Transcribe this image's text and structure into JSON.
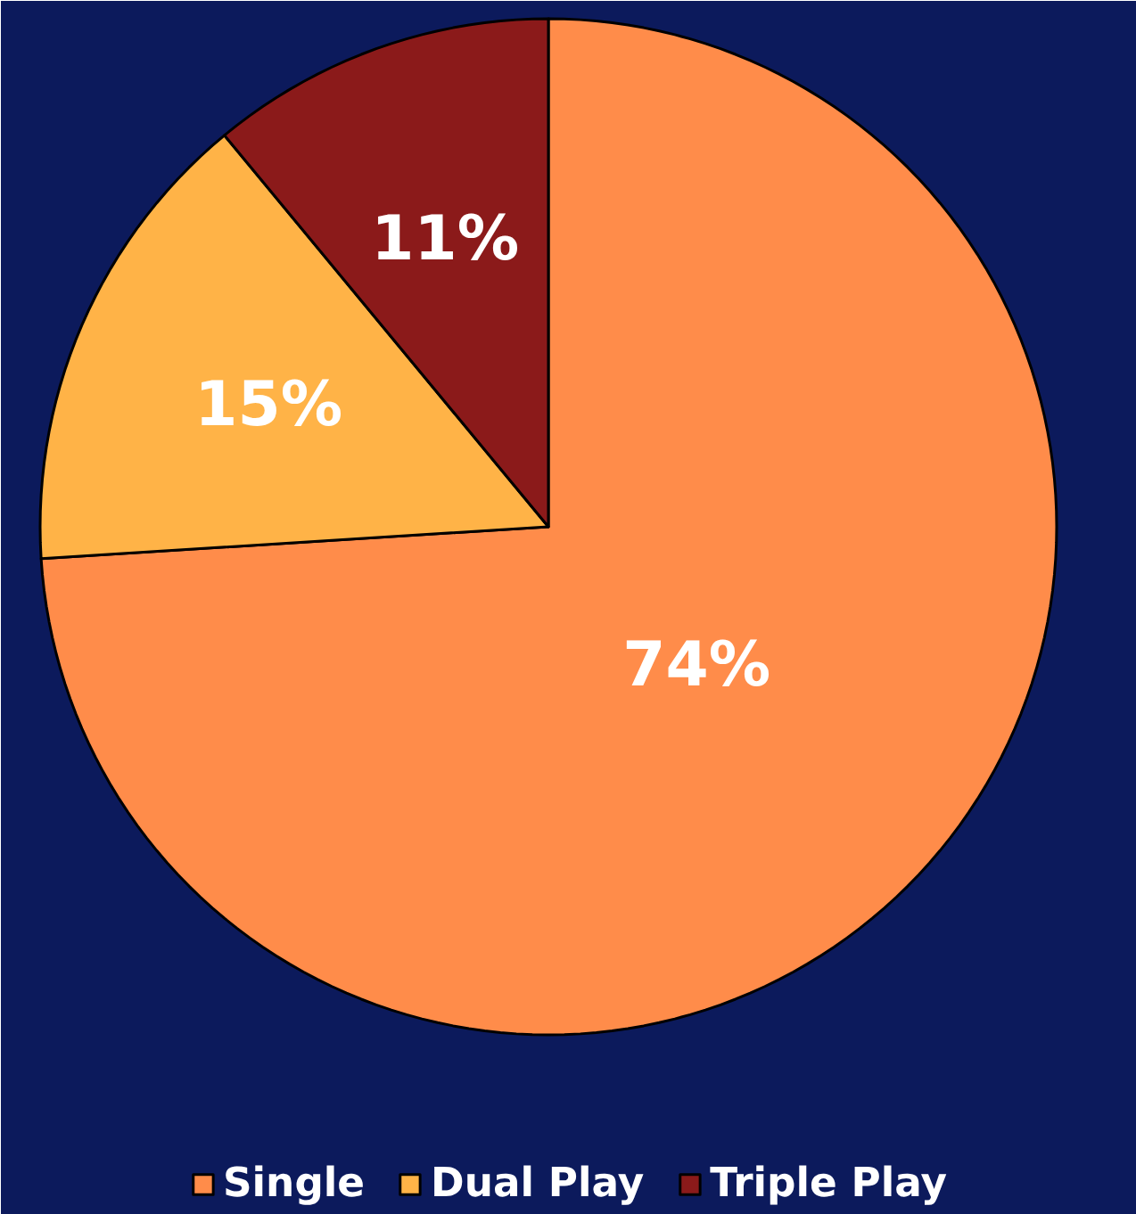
{
  "chart_data": {
    "type": "pie",
    "categories": [
      "Single",
      "Dual Play",
      "Triple Play"
    ],
    "values": [
      74,
      15,
      11
    ],
    "colors": [
      "#ff8c4a",
      "#ffb347",
      "#8b1a1a"
    ],
    "value_labels": [
      "74%",
      "15%",
      "11%"
    ],
    "legend": "bottom"
  }
}
